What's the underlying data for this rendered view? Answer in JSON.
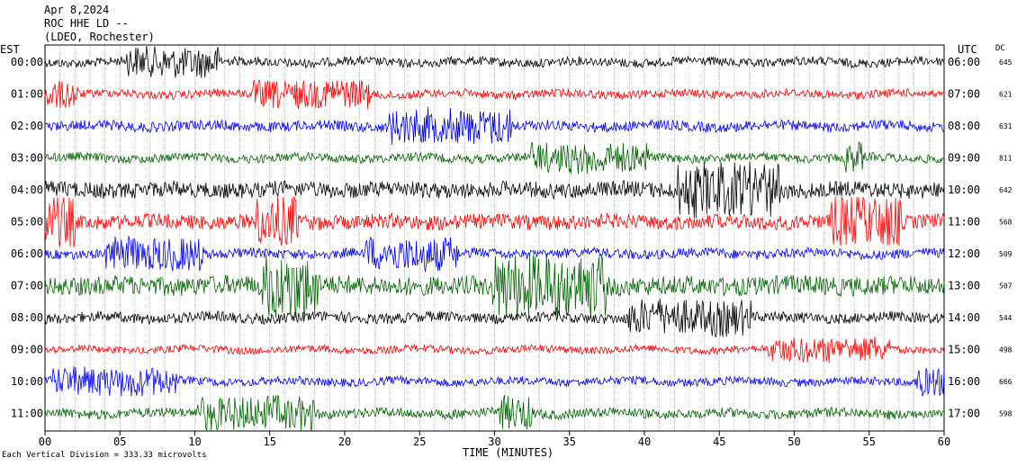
{
  "header": {
    "date": "Apr 8,2024",
    "station": "ROC HHE LD --",
    "network": "(LDEO, Rochester)"
  },
  "left_axis_label": "EST",
  "right_axis_label": "UTC",
  "dc_label": "DC",
  "x_axis_title": "TIME (MINUTES)",
  "footer_note": "Each Vertical Division = 333.33 microvolts",
  "colors": {
    "black": "#000000",
    "red": "#ff0000",
    "blue": "#0000ff",
    "green": "#006400"
  },
  "chart_data": {
    "type": "line",
    "title": "",
    "xlabel": "TIME (MINUTES)",
    "ylabel": "",
    "x_ticks": [
      0,
      5,
      10,
      15,
      20,
      25,
      30,
      35,
      40,
      45,
      50,
      55,
      60
    ],
    "xlim": [
      0,
      60
    ],
    "grid": "vertical minute gridlines every 1 minute",
    "rows": [
      {
        "est": "00:00",
        "utc": "06:00",
        "dc": "645",
        "color": "black"
      },
      {
        "est": "01:00",
        "utc": "07:00",
        "dc": "621",
        "color": "red"
      },
      {
        "est": "02:00",
        "utc": "08:00",
        "dc": "631",
        "color": "blue"
      },
      {
        "est": "03:00",
        "utc": "09:00",
        "dc": "811",
        "color": "green"
      },
      {
        "est": "04:00",
        "utc": "10:00",
        "dc": "642",
        "color": "black"
      },
      {
        "est": "05:00",
        "utc": "11:00",
        "dc": "568",
        "color": "red"
      },
      {
        "est": "06:00",
        "utc": "12:00",
        "dc": "509",
        "color": "blue"
      },
      {
        "est": "07:00",
        "utc": "13:00",
        "dc": "507",
        "color": "green"
      },
      {
        "est": "08:00",
        "utc": "14:00",
        "dc": "544",
        "color": "black"
      },
      {
        "est": "09:00",
        "utc": "15:00",
        "dc": "498",
        "color": "red"
      },
      {
        "est": "10:00",
        "utc": "16:00",
        "dc": "666",
        "color": "blue"
      },
      {
        "est": "11:00",
        "utc": "17:00",
        "dc": "598",
        "color": "green"
      }
    ]
  }
}
